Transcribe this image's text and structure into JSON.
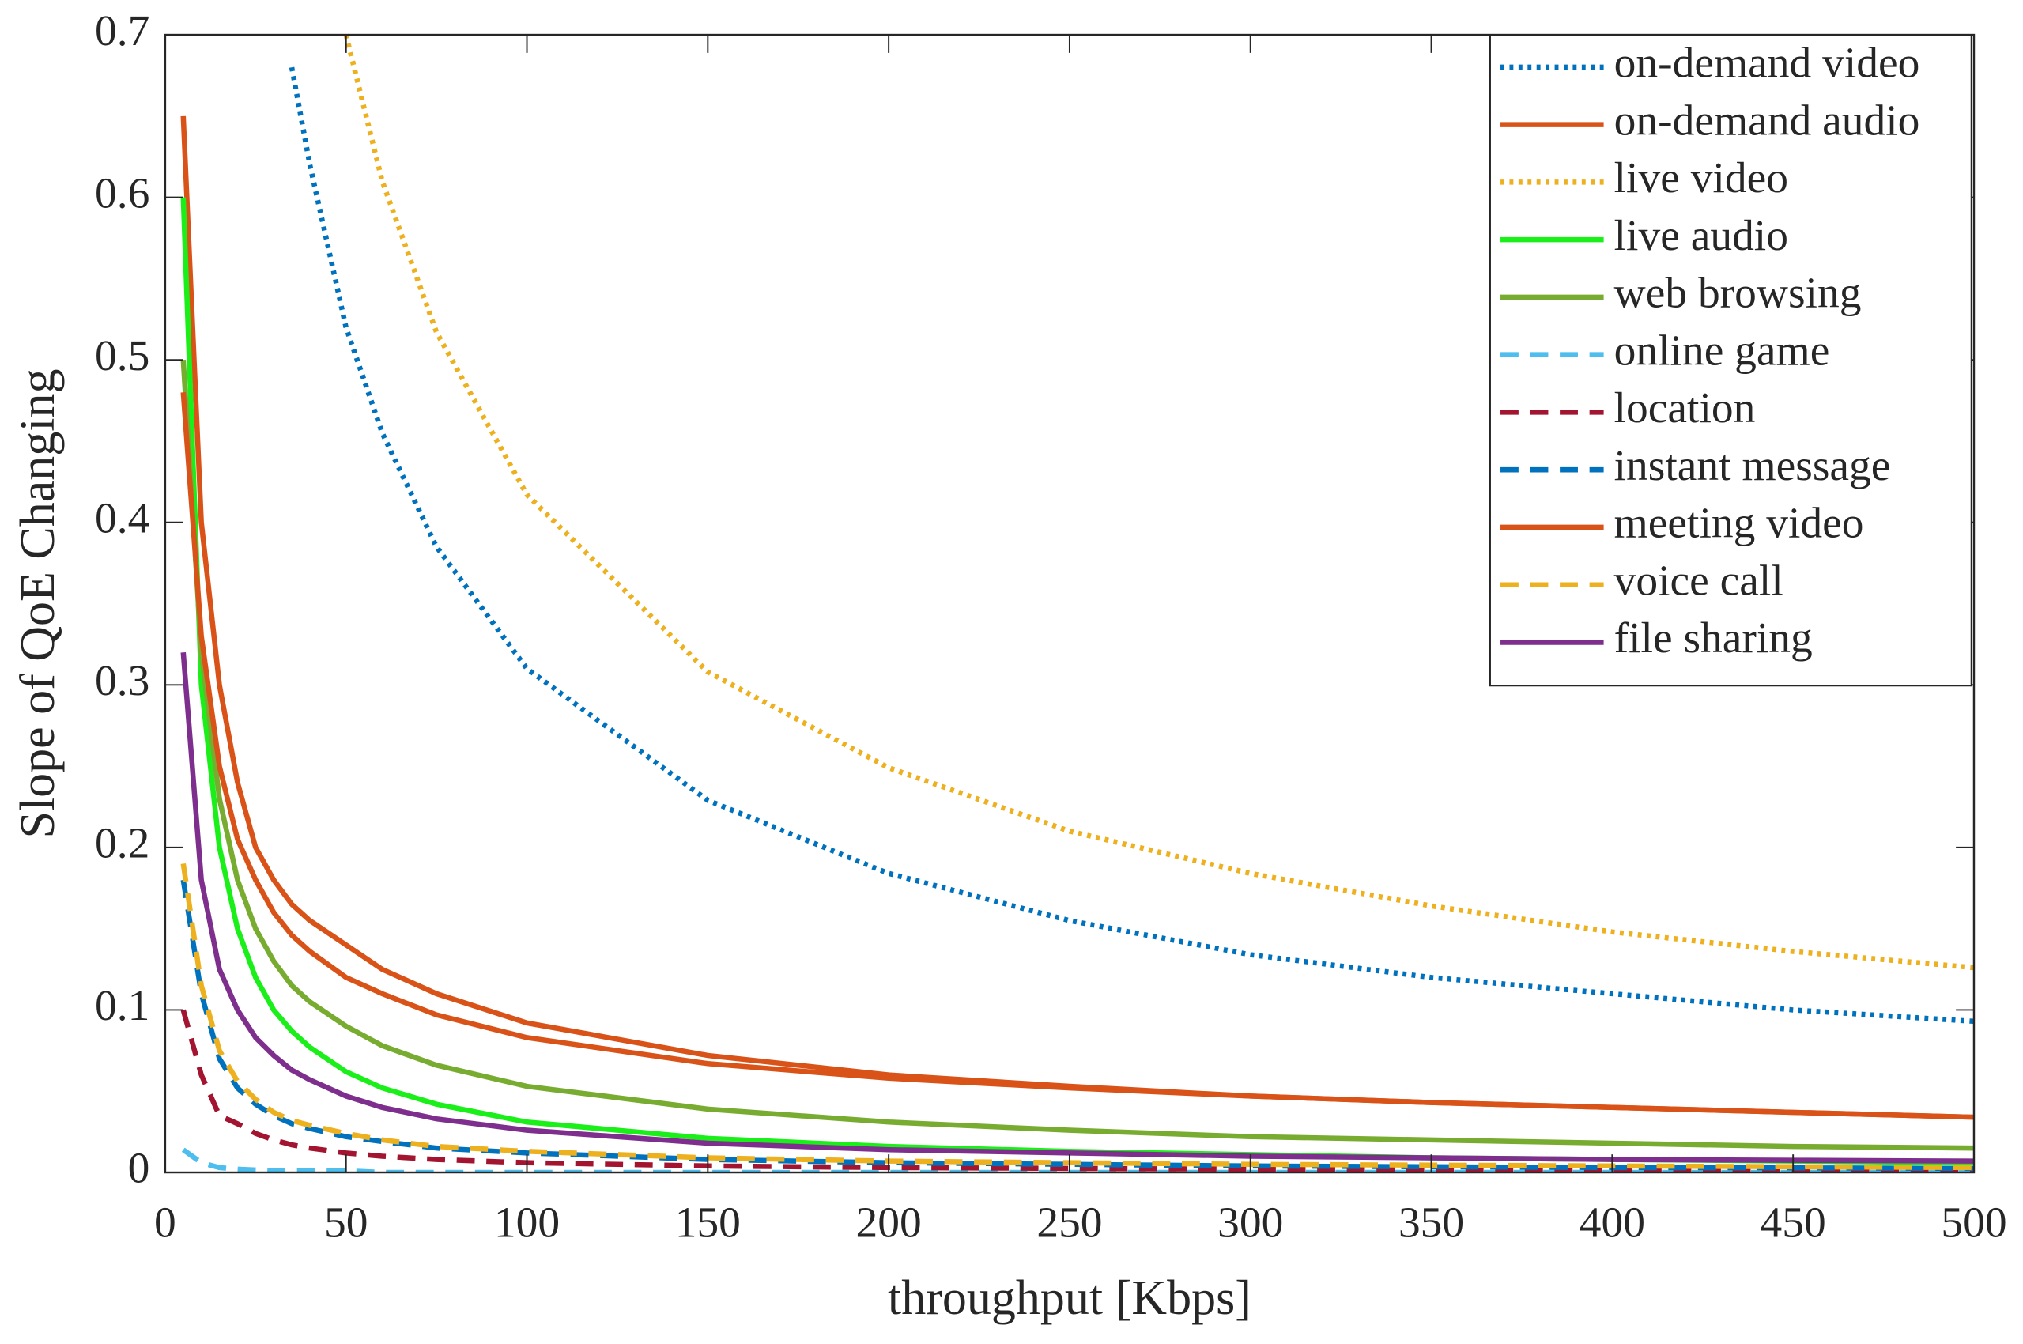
{
  "chart_data": {
    "type": "line",
    "xlabel": "throughput [Kbps]",
    "ylabel": "Slope of QoE Changing",
    "x": [
      5,
      10,
      15,
      20,
      25,
      30,
      35,
      40,
      50,
      60,
      75,
      100,
      150,
      200,
      250,
      300,
      350,
      400,
      450,
      500
    ],
    "xlim": [
      0,
      500
    ],
    "xticks": [
      0,
      50,
      100,
      150,
      200,
      250,
      300,
      350,
      400,
      450,
      500
    ],
    "ylim": [
      0,
      0.7
    ],
    "yticks": [
      0,
      0.1,
      0.2,
      0.3,
      0.4,
      0.5,
      0.6,
      0.7
    ],
    "legend": "upper right",
    "series": [
      {
        "name": "on-demand video",
        "color": "#0072bd",
        "dash": "dotted",
        "values": [
          null,
          null,
          null,
          null,
          null,
          null,
          0.68,
          0.62,
          0.52,
          0.455,
          0.385,
          0.31,
          0.229,
          0.184,
          0.155,
          0.134,
          0.12,
          0.11,
          0.1,
          0.093
        ]
      },
      {
        "name": "on-demand audio",
        "color": "#d95319",
        "dash": "solid",
        "values": [
          0.65,
          0.4,
          0.3,
          0.24,
          0.2,
          0.18,
          0.165,
          0.155,
          0.14,
          0.125,
          0.11,
          0.092,
          0.072,
          0.06,
          0.053,
          0.047,
          0.043,
          0.04,
          0.037,
          0.034
        ]
      },
      {
        "name": "live video",
        "color": "#edb120",
        "dash": "dotted",
        "values": [
          null,
          null,
          null,
          null,
          null,
          null,
          null,
          null,
          0.7,
          0.61,
          0.517,
          0.417,
          0.308,
          0.249,
          0.21,
          0.184,
          0.164,
          0.148,
          0.136,
          0.126
        ]
      },
      {
        "name": "live audio",
        "color": "#1aef1a",
        "dash": "solid",
        "values": [
          0.6,
          0.3,
          0.2,
          0.15,
          0.12,
          0.1,
          0.087,
          0.077,
          0.062,
          0.052,
          0.042,
          0.031,
          0.021,
          0.016,
          0.013,
          0.011,
          0.009,
          0.008,
          0.007,
          0.006
        ]
      },
      {
        "name": "web browsing",
        "color": "#77ac30",
        "dash": "solid",
        "values": [
          0.5,
          0.32,
          0.23,
          0.18,
          0.15,
          0.13,
          0.115,
          0.105,
          0.09,
          0.078,
          0.066,
          0.053,
          0.039,
          0.031,
          0.026,
          0.022,
          0.02,
          0.018,
          0.016,
          0.015
        ]
      },
      {
        "name": "online game",
        "color": "#4dbeee",
        "dash": "dashed",
        "values": [
          0.014,
          0.006,
          0.003,
          0.002,
          0.0015,
          0.001,
          0.001,
          0.001,
          0.001,
          0,
          0,
          0,
          0,
          0,
          0,
          0,
          0,
          0,
          0,
          0
        ]
      },
      {
        "name": "location",
        "color": "#a2142f",
        "dash": "dashed",
        "values": [
          0.1,
          0.06,
          0.035,
          0.03,
          0.024,
          0.02,
          0.017,
          0.015,
          0.012,
          0.01,
          0.008,
          0.006,
          0.004,
          0.003,
          0.0025,
          0.002,
          0.0017,
          0.0015,
          0.0013,
          0.0012
        ]
      },
      {
        "name": "instant message",
        "color": "#0072bd",
        "dash": "dashed",
        "values": [
          0.18,
          0.11,
          0.07,
          0.052,
          0.042,
          0.035,
          0.03,
          0.027,
          0.022,
          0.019,
          0.015,
          0.012,
          0.008,
          0.006,
          0.005,
          0.004,
          0.0035,
          0.003,
          0.0028,
          0.0025
        ]
      },
      {
        "name": "meeting video",
        "color": "#d95319",
        "dash": "solid",
        "values": [
          0.48,
          0.33,
          0.25,
          0.205,
          0.18,
          0.16,
          0.146,
          0.136,
          0.12,
          0.11,
          0.097,
          0.083,
          0.067,
          0.058,
          0.052,
          0.047,
          0.043,
          0.04,
          0.037,
          0.034
        ]
      },
      {
        "name": "voice call",
        "color": "#edb120",
        "dash": "dashed",
        "values": [
          0.19,
          0.115,
          0.075,
          0.056,
          0.045,
          0.037,
          0.032,
          0.029,
          0.024,
          0.02,
          0.016,
          0.013,
          0.009,
          0.007,
          0.006,
          0.005,
          0.0045,
          0.004,
          0.0035,
          0.003
        ]
      },
      {
        "name": "file sharing",
        "color": "#7e2f8e",
        "dash": "solid",
        "values": [
          0.32,
          0.18,
          0.125,
          0.1,
          0.083,
          0.072,
          0.063,
          0.057,
          0.047,
          0.04,
          0.033,
          0.026,
          0.018,
          0.014,
          0.012,
          0.01,
          0.009,
          0.008,
          0.0075,
          0.007
        ]
      }
    ]
  }
}
